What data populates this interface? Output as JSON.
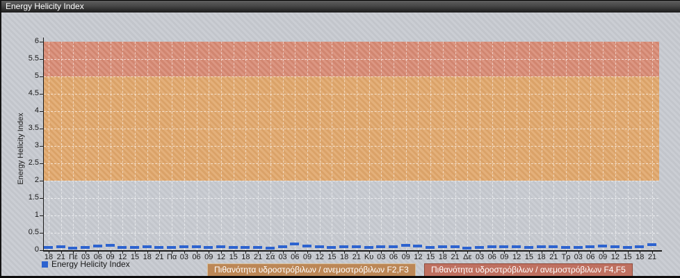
{
  "window": {
    "title": "Energy Helicity Index"
  },
  "chart_data": {
    "type": "line",
    "title": "Energy Helicity Index",
    "xlabel": "",
    "ylabel": "Energy Helicity Index",
    "ylim": [
      0,
      6
    ],
    "y_tick_step": 0.5,
    "grid": true,
    "legend_position": "bottom",
    "x_tick_labels": [
      "18",
      "21",
      "Πέ",
      "03",
      "06",
      "09",
      "12",
      "15",
      "18",
      "21",
      "Πα",
      "03",
      "06",
      "09",
      "12",
      "15",
      "18",
      "21",
      "Σά",
      "03",
      "06",
      "09",
      "12",
      "15",
      "18",
      "21",
      "Κυ",
      "03",
      "06",
      "09",
      "12",
      "15",
      "18",
      "21",
      "Δε",
      "03",
      "06",
      "09",
      "12",
      "15",
      "18",
      "21",
      "Τρ",
      "03",
      "06",
      "09",
      "12",
      "15",
      "18",
      "21"
    ],
    "series": [
      {
        "name": "Energy Helicity Index",
        "color": "#2d63cf",
        "marker": "horizontal-dash",
        "values": [
          0.04,
          0.07,
          0.02,
          0.04,
          0.08,
          0.1,
          0.04,
          0.05,
          0.06,
          0.04,
          0.05,
          0.06,
          0.06,
          0.04,
          0.06,
          0.05,
          0.04,
          0.04,
          0.03,
          0.06,
          0.14,
          0.08,
          0.06,
          0.05,
          0.06,
          0.06,
          0.04,
          0.07,
          0.06,
          0.11,
          0.09,
          0.05,
          0.06,
          0.06,
          0.02,
          0.05,
          0.07,
          0.06,
          0.06,
          0.05,
          0.06,
          0.06,
          0.04,
          0.05,
          0.06,
          0.08,
          0.06,
          0.05,
          0.07,
          0.13
        ]
      }
    ],
    "bands": [
      {
        "label": "Πιθανότητα υδροστρόβιλων / ανεμοστρόβιλων F2,F3",
        "from": 2,
        "to": 5,
        "color": "#e1a76b",
        "legend_bg": "#bc8756",
        "legend_border": "#d9c09a"
      },
      {
        "label": "Πιθανότητα υδροστρόβιλων / ανεμοστρόβιλων F4,F5",
        "from": 5,
        "to": 6,
        "color": "#d88a74",
        "legend_bg": "#bf7060",
        "legend_border": "#8e4a3a"
      }
    ]
  },
  "colors": {
    "background": "#c6c9cf",
    "titlebar_text": "#ffffff",
    "axis": "#1a1a1a",
    "gridline": "#ffffff"
  }
}
